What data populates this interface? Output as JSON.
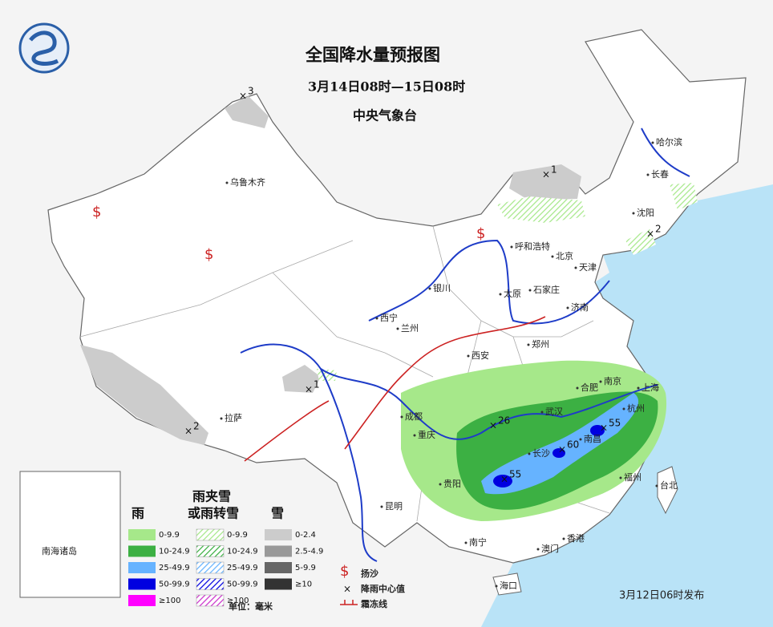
{
  "header": {
    "title": "全国降水量预报图",
    "period": "3月14日08时—15日08时",
    "issuer": "中央气象台"
  },
  "cities": [
    {
      "label": "乌鲁木齐"
    },
    {
      "label": "哈尔滨"
    },
    {
      "label": "长春"
    },
    {
      "label": "沈阳"
    },
    {
      "label": "呼和浩特"
    },
    {
      "label": "北京"
    },
    {
      "label": "天津"
    },
    {
      "label": "银川"
    },
    {
      "label": "太原"
    },
    {
      "label": "石家庄"
    },
    {
      "label": "济南"
    },
    {
      "label": "西宁"
    },
    {
      "label": "兰州"
    },
    {
      "label": "郑州"
    },
    {
      "label": "西安"
    },
    {
      "label": "合肥"
    },
    {
      "label": "南京"
    },
    {
      "label": "上海"
    },
    {
      "label": "成都"
    },
    {
      "label": "武汉"
    },
    {
      "label": "杭州"
    },
    {
      "label": "重庆"
    },
    {
      "label": "长沙"
    },
    {
      "label": "南昌"
    },
    {
      "label": "拉萨"
    },
    {
      "label": "贵阳"
    },
    {
      "label": "福州"
    },
    {
      "label": "台北"
    },
    {
      "label": "昆明"
    },
    {
      "label": "南宁"
    },
    {
      "label": "澳门"
    },
    {
      "label": "香港"
    },
    {
      "label": "海口"
    }
  ],
  "centers": [
    {
      "value": 3
    },
    {
      "value": 1
    },
    {
      "value": 2
    },
    {
      "value": 1
    },
    {
      "value": 2
    },
    {
      "value": 26
    },
    {
      "value": 55
    },
    {
      "value": 60
    },
    {
      "value": 55
    }
  ],
  "inset": {
    "label": "南海诸岛"
  },
  "legend": {
    "rain": {
      "title": "雨",
      "items": [
        {
          "label": "0-9.9",
          "color": "#a6e88a"
        },
        {
          "label": "10-24.9",
          "color": "#3cb043"
        },
        {
          "label": "25-49.9",
          "color": "#66b3ff"
        },
        {
          "label": "50-99.9",
          "color": "#0000e0"
        },
        {
          "label": "≥100",
          "color": "#ff00ff"
        }
      ]
    },
    "mixed": {
      "title_lines": [
        "雨夹雪",
        "或雨转雪"
      ],
      "items": [
        {
          "label": "0-9.9",
          "color": "#a6e88a"
        },
        {
          "label": "10-24.9",
          "color": "#3cb043"
        },
        {
          "label": "25-49.9",
          "color": "#66b3ff"
        },
        {
          "label": "50-99.9",
          "color": "#0000e0"
        },
        {
          "label": "≥100",
          "color": "#cc33cc"
        }
      ]
    },
    "snow": {
      "title": "雪",
      "items": [
        {
          "label": "0-2.4",
          "color": "#cccccc"
        },
        {
          "label": "2.5-4.9",
          "color": "#999999"
        },
        {
          "label": "5-9.9",
          "color": "#666666"
        },
        {
          "label": "≥10",
          "color": "#333333"
        }
      ]
    },
    "symbols": [
      {
        "label": "扬沙"
      },
      {
        "label": "降雨中心值"
      },
      {
        "label": "霜冻线"
      }
    ],
    "unit": "单位：毫米"
  },
  "footer": "3月12日06时发布"
}
